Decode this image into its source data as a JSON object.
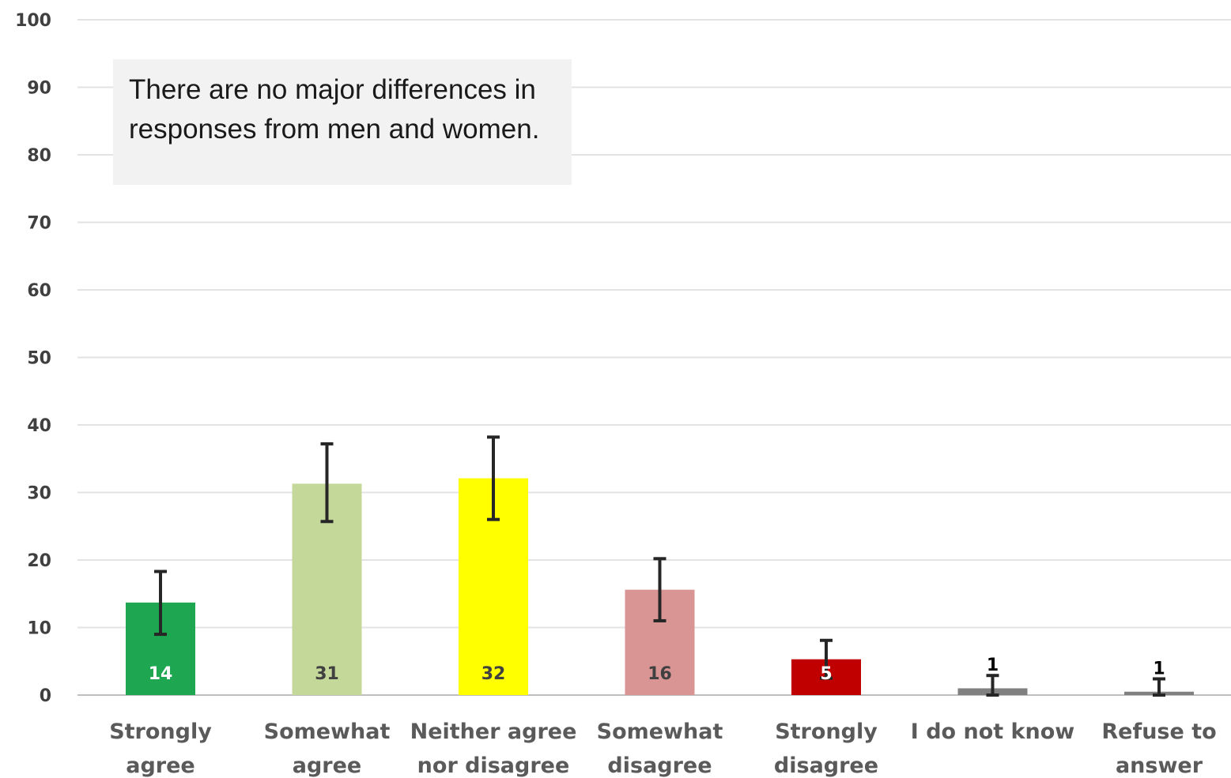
{
  "chart_data": {
    "type": "bar",
    "categories": [
      [
        "Strongly",
        "agree"
      ],
      [
        "Somewhat",
        "agree"
      ],
      [
        "Neither agree",
        "nor disagree"
      ],
      [
        "Somewhat",
        "disagree"
      ],
      [
        "Strongly",
        "disagree"
      ],
      [
        "I do not know"
      ],
      [
        "Refuse to",
        "answer"
      ]
    ],
    "values": [
      13.7,
      31.3,
      32.1,
      15.6,
      5.3,
      1.0,
      0.5
    ],
    "data_labels": [
      "14",
      "31",
      "32",
      "16",
      "5",
      "1",
      "1"
    ],
    "error_bars": [
      {
        "low": 9.0,
        "high": 18.3
      },
      {
        "low": 25.7,
        "high": 37.2
      },
      {
        "low": 26.0,
        "high": 38.2
      },
      {
        "low": 11.0,
        "high": 20.2
      },
      {
        "low": 2.5,
        "high": 8.1
      },
      {
        "low": 0.0,
        "high": 2.9
      },
      {
        "low": 0.0,
        "high": 2.4
      }
    ],
    "colors": [
      "#1ea650",
      "#c4d89a",
      "#ffff00",
      "#d99594",
      "#c00000",
      "#808080",
      "#808080"
    ],
    "label_colors": [
      "#ffffff",
      "#404040",
      "#404040",
      "#404040",
      "#ffffff",
      "#000000",
      "#000000"
    ],
    "label_position": [
      "inside",
      "inside",
      "inside",
      "inside",
      "inside",
      "above",
      "above"
    ],
    "ylim": [
      0,
      100
    ],
    "yticks": [
      0,
      10,
      20,
      30,
      40,
      50,
      60,
      70,
      80,
      90,
      100
    ],
    "grid": true,
    "title": "",
    "xlabel": "",
    "ylabel": "",
    "annotation": "There are no major differences in responses from men and women."
  }
}
